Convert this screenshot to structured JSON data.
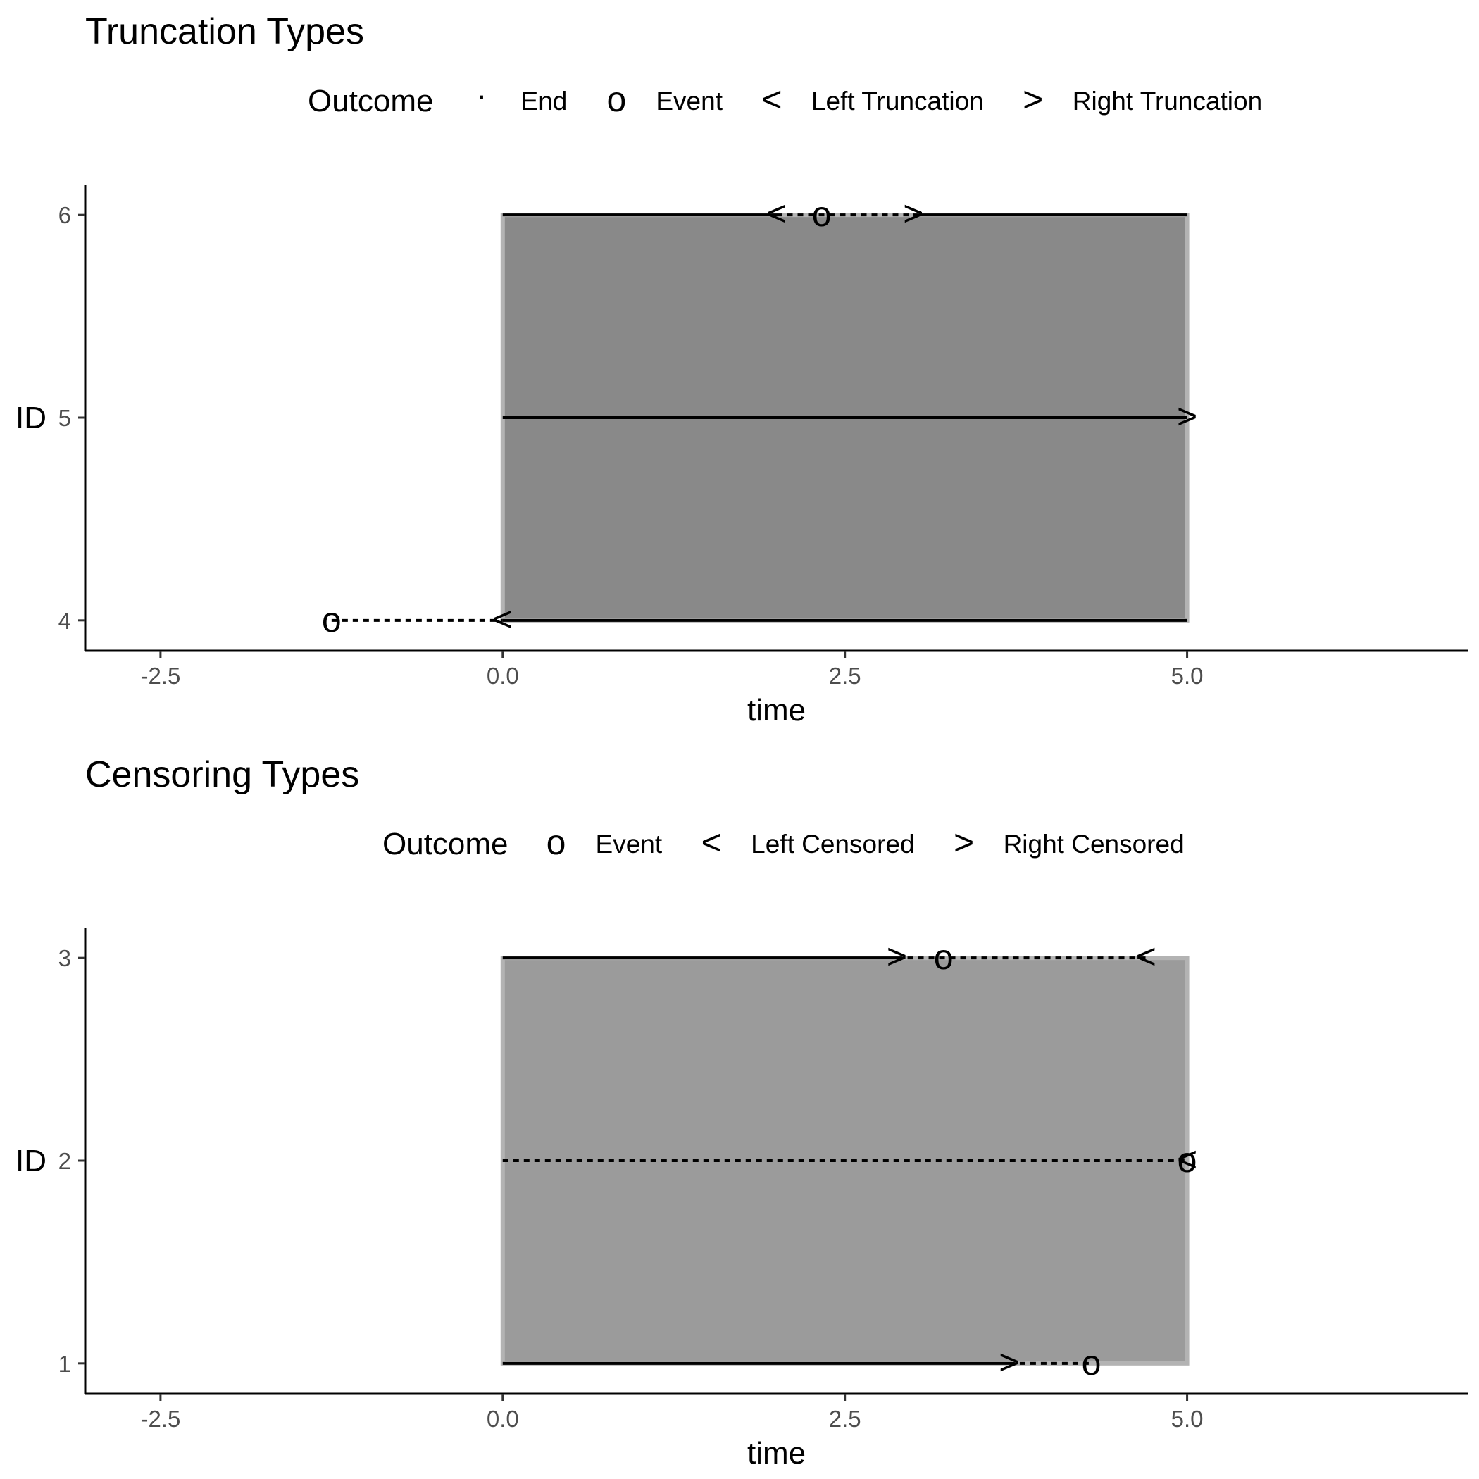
{
  "chart_data": [
    {
      "type": "timeline",
      "title": "Truncation Types",
      "xlabel": "time",
      "ylabel": "ID",
      "xlim": [
        -3.05,
        7.05
      ],
      "ylim": [
        3.85,
        6.15
      ],
      "x_ticks": [
        -2.5,
        0.0,
        2.5,
        5.0
      ],
      "x_tick_labels": [
        "-2.5",
        "0.0",
        "2.5",
        "5.0"
      ],
      "y_ticks": [
        4,
        5,
        6
      ],
      "y_tick_labels": [
        "4",
        "5",
        "6"
      ],
      "observation_window": {
        "x": [
          0,
          5
        ],
        "y": [
          4,
          6
        ],
        "color": "#898989"
      },
      "legend": {
        "title": "Outcome",
        "position": "top",
        "items": [
          {
            "symbol": "·",
            "label": "End"
          },
          {
            "symbol": "o",
            "label": "Event"
          },
          {
            "symbol": "<",
            "label": "Left Truncation"
          },
          {
            "symbol": ">",
            "label": "Right Truncation"
          }
        ]
      },
      "subjects": [
        {
          "id": 4,
          "segments": [
            {
              "from": -1.25,
              "to": 0,
              "style": "dotted"
            },
            {
              "from": 0,
              "to": 5,
              "style": "solid"
            }
          ],
          "markers": [
            {
              "x": -1.25,
              "symbol": "o"
            },
            {
              "x": 0,
              "symbol": "<"
            },
            {
              "x": 5,
              "symbol": "·"
            }
          ]
        },
        {
          "id": 5,
          "segments": [
            {
              "from": 0,
              "to": 5,
              "style": "solid"
            }
          ],
          "markers": [
            {
              "x": 5,
              "symbol": ">"
            }
          ]
        },
        {
          "id": 6,
          "segments": [
            {
              "from": 0,
              "to": 2,
              "style": "solid"
            },
            {
              "from": 2,
              "to": 3,
              "style": "dotted"
            },
            {
              "from": 3,
              "to": 5,
              "style": "solid"
            }
          ],
          "markers": [
            {
              "x": 2,
              "symbol": "<"
            },
            {
              "x": 2.33,
              "symbol": "o"
            },
            {
              "x": 3,
              "symbol": ">"
            }
          ]
        }
      ]
    },
    {
      "type": "timeline",
      "title": "Censoring Types",
      "xlabel": "time",
      "ylabel": "ID",
      "xlim": [
        -3.05,
        7.05
      ],
      "ylim": [
        0.85,
        3.15
      ],
      "x_ticks": [
        -2.5,
        0.0,
        2.5,
        5.0
      ],
      "x_tick_labels": [
        "-2.5",
        "0.0",
        "2.5",
        "5.0"
      ],
      "y_ticks": [
        1,
        2,
        3
      ],
      "y_tick_labels": [
        "1",
        "2",
        "3"
      ],
      "observation_window": {
        "x": [
          0,
          5
        ],
        "y": [
          1,
          3
        ],
        "color": "#9b9b9b"
      },
      "legend": {
        "title": "Outcome",
        "position": "top",
        "items": [
          {
            "symbol": "o",
            "label": "Event"
          },
          {
            "symbol": "<",
            "label": "Left Censored"
          },
          {
            "symbol": ">",
            "label": "Right Censored"
          }
        ]
      },
      "subjects": [
        {
          "id": 1,
          "segments": [
            {
              "from": 0,
              "to": 3.7,
              "style": "solid"
            },
            {
              "from": 3.7,
              "to": 4.3,
              "style": "dotted"
            }
          ],
          "markers": [
            {
              "x": 3.7,
              "symbol": ">"
            },
            {
              "x": 4.3,
              "symbol": "o"
            }
          ]
        },
        {
          "id": 2,
          "segments": [
            {
              "from": 0,
              "to": 5,
              "style": "dotted"
            }
          ],
          "markers": [
            {
              "x": 5,
              "symbol": "<"
            },
            {
              "x": 5,
              "symbol": "o"
            }
          ]
        },
        {
          "id": 3,
          "segments": [
            {
              "from": 0,
              "to": 2.88,
              "style": "solid"
            },
            {
              "from": 2.88,
              "to": 4.7,
              "style": "dotted"
            }
          ],
          "markers": [
            {
              "x": 2.88,
              "symbol": ">"
            },
            {
              "x": 3.22,
              "symbol": "o"
            },
            {
              "x": 4.7,
              "symbol": "<"
            }
          ]
        }
      ]
    }
  ]
}
